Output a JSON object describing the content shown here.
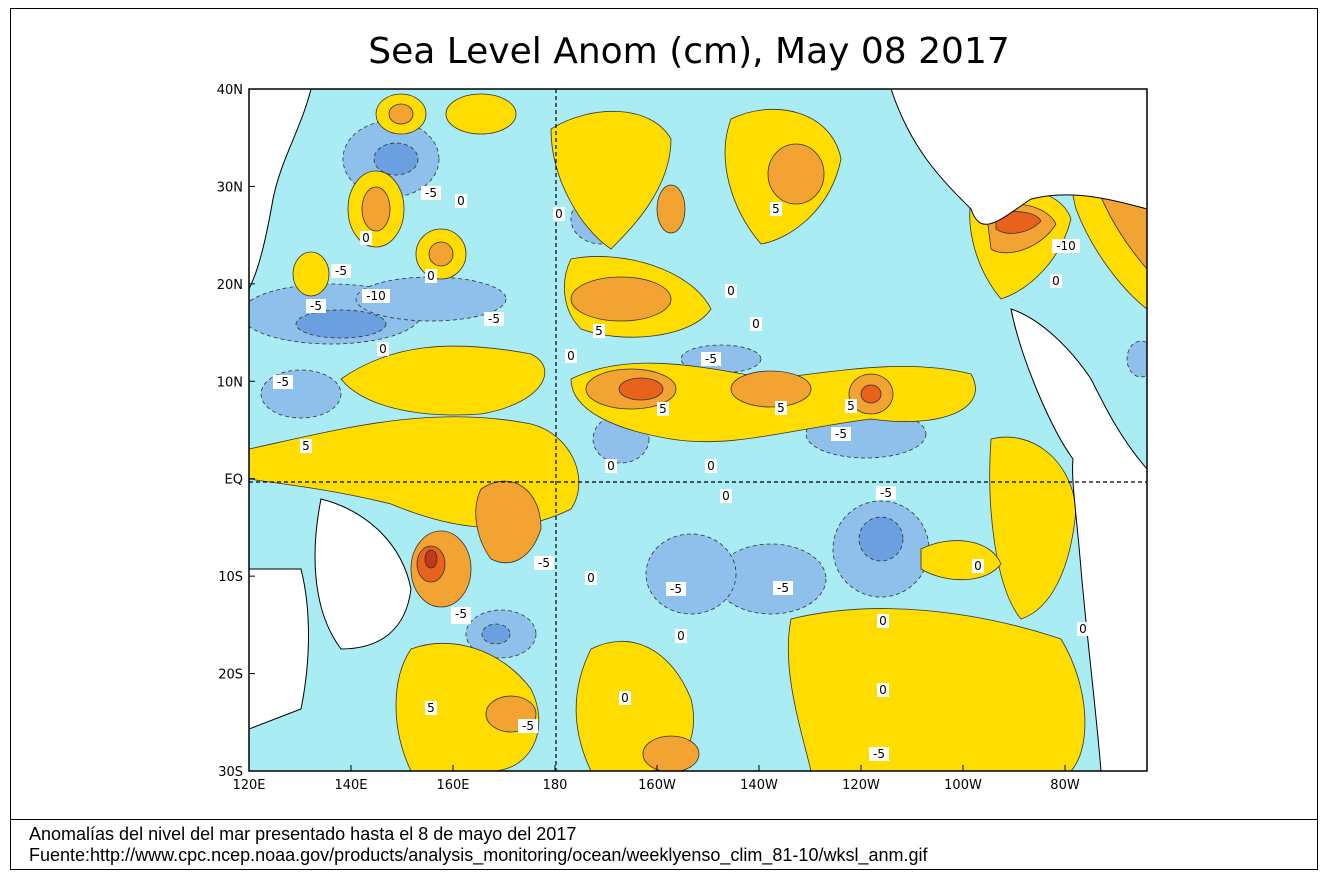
{
  "map": {
    "title": "Sea Level Anom (cm), May 08 2017",
    "lat_labels": [
      "40N",
      "30N",
      "20N",
      "10N",
      "EQ",
      "10S",
      "20S",
      "30S"
    ],
    "lon_labels": [
      "120E",
      "140E",
      "160E",
      "180",
      "160W",
      "140W",
      "120W",
      "100W",
      "80W"
    ],
    "colors": {
      "neg_light": "#a9ecf4",
      "neg_mid": "#8fc0ec",
      "neg_dark": "#6a9fe0",
      "pos_light": "#ffdd00",
      "pos_mid": "#f2a332",
      "pos_dark": "#e8621b",
      "pos_max": "#c0391a",
      "land": "#ffffff"
    },
    "contour_labels": [
      {
        "text": "-5"
      },
      {
        "text": "-5"
      },
      {
        "text": "-5"
      },
      {
        "text": "-10"
      },
      {
        "text": "-5"
      },
      {
        "text": "-5"
      },
      {
        "text": "0"
      },
      {
        "text": "0"
      },
      {
        "text": "0"
      },
      {
        "text": "0"
      },
      {
        "text": "5"
      },
      {
        "text": "5"
      },
      {
        "text": "-5"
      },
      {
        "text": "0"
      },
      {
        "text": "0"
      },
      {
        "text": "5"
      },
      {
        "text": "-5"
      },
      {
        "text": "0"
      },
      {
        "text": "0"
      },
      {
        "text": "5"
      },
      {
        "text": "5"
      },
      {
        "text": "-5"
      },
      {
        "text": "0"
      },
      {
        "text": "0"
      },
      {
        "text": "-5"
      },
      {
        "text": "0"
      },
      {
        "text": "5"
      },
      {
        "text": "-5"
      },
      {
        "text": "0"
      },
      {
        "text": "-5"
      },
      {
        "text": "-5"
      },
      {
        "text": "0"
      },
      {
        "text": "0"
      },
      {
        "text": "0"
      },
      {
        "text": "-5"
      },
      {
        "text": "5"
      },
      {
        "text": "-5"
      },
      {
        "text": "0"
      },
      {
        "text": "0"
      },
      {
        "text": "0"
      },
      {
        "text": "-5"
      },
      {
        "text": "-10"
      },
      {
        "text": "0"
      }
    ]
  },
  "caption": {
    "line1": "Anomalías del nivel del mar presentado hasta el 8 de mayo del 2017",
    "line2": "Fuente:http://www.cpc.ncep.noaa.gov/products/analysis_monitoring/ocean/weeklyenso_clim_81-10/wksl_anm.gif"
  }
}
